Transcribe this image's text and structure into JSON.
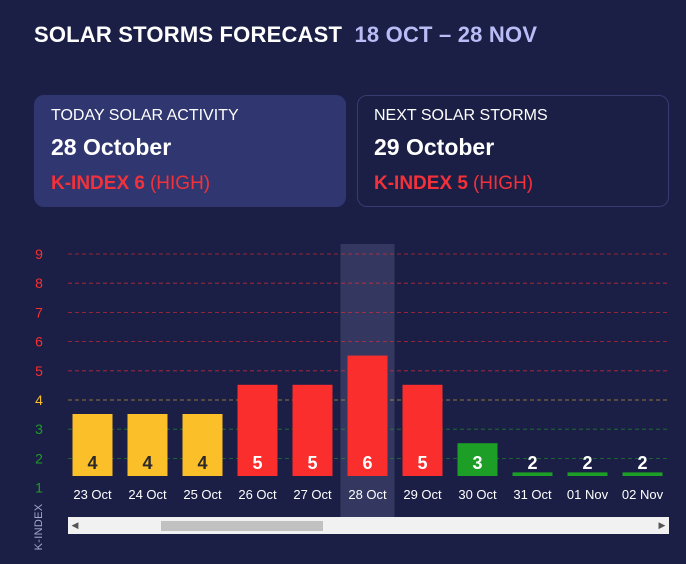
{
  "header": {
    "title": "SOLAR STORMS FORECAST",
    "range": "18 OCT – 28 NOV"
  },
  "today": {
    "label": "TODAY SOLAR ACTIVITY",
    "date": "28 October",
    "kindex": "K-INDEX 6",
    "level": "(HIGH)"
  },
  "next": {
    "label": "NEXT SOLAR STORMS",
    "date": "29 October",
    "kindex": "K-INDEX 5",
    "level": "(HIGH)"
  },
  "colors": {
    "background": "#1b1f45",
    "high": "#fb2e2e",
    "moderate": "#fbbf29",
    "low": "#1d9e26",
    "highlight": "#343860"
  },
  "chart_data": {
    "type": "bar",
    "categories": [
      "23 Oct",
      "24 Oct",
      "25 Oct",
      "26 Oct",
      "27 Oct",
      "28 Oct",
      "29 Oct",
      "30 Oct",
      "31 Oct",
      "01 Nov",
      "02 Nov"
    ],
    "values": [
      4,
      4,
      4,
      5,
      5,
      6,
      5,
      3,
      2,
      2,
      2
    ],
    "ylabel": "K-INDEX",
    "yticks": [
      "1",
      "2",
      "3",
      "4",
      "5",
      "6",
      "7",
      "8",
      "9"
    ],
    "ylim": [
      1,
      9
    ],
    "highlighted_category": "28 Oct",
    "grid": true
  },
  "scrollbar": {
    "left_icon": "triangle-left-icon",
    "right_icon": "triangle-right-icon"
  }
}
